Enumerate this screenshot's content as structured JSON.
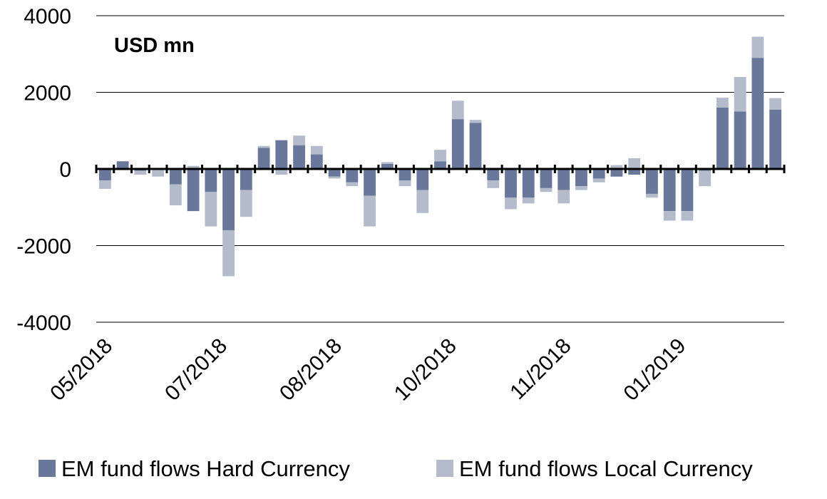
{
  "chart_data": {
    "type": "bar",
    "stacked": true,
    "unit_label": "USD mn",
    "ylim": [
      -4000,
      4000
    ],
    "y_ticks": [
      4000,
      2000,
      0,
      -2000,
      -4000
    ],
    "y_tick_labels": [
      "4000",
      "2000",
      "0",
      "-2000",
      "-4000"
    ],
    "x_tick_labels": [
      {
        "label": "05/2018",
        "index": 0
      },
      {
        "label": "07/2018",
        "index": 6.5
      },
      {
        "label": "08/2018",
        "index": 13
      },
      {
        "label": "10/2018",
        "index": 19.5
      },
      {
        "label": "11/2018",
        "index": 26
      },
      {
        "label": "01/2019",
        "index": 32.5
      }
    ],
    "grid": "horizontal",
    "legend": "bottom",
    "colors": {
      "hard": "#68779a",
      "local": "#b4bccb",
      "grid": "#000000",
      "axis": "#000000"
    },
    "series": [
      {
        "name": "EM fund flows Hard Currency",
        "color": "#68779a",
        "values": [
          -300,
          200,
          -50,
          -30,
          -400,
          -1100,
          -600,
          -1600,
          -550,
          550,
          750,
          620,
          380,
          -200,
          -350,
          -700,
          130,
          -300,
          -550,
          200,
          1300,
          1200,
          -300,
          -750,
          -750,
          -500,
          -550,
          -450,
          -250,
          -200,
          -150,
          -650,
          -1100,
          -1100,
          -50,
          1600,
          1500,
          2900,
          1550
        ]
      },
      {
        "name": "EM fund flows Local Currency",
        "color": "#b4bccb",
        "values": [
          -220,
          -30,
          -100,
          -170,
          -550,
          80,
          -900,
          -1200,
          -700,
          50,
          -150,
          250,
          220,
          -50,
          -100,
          -800,
          50,
          -150,
          -600,
          300,
          480,
          80,
          -200,
          -300,
          -150,
          -100,
          -350,
          -100,
          -100,
          100,
          280,
          -100,
          -250,
          -250,
          -400,
          260,
          900,
          550,
          300
        ]
      }
    ]
  },
  "legend": {
    "items": [
      {
        "label": "EM fund flows Hard Currency"
      },
      {
        "label": "EM fund flows Local Currency"
      }
    ]
  }
}
